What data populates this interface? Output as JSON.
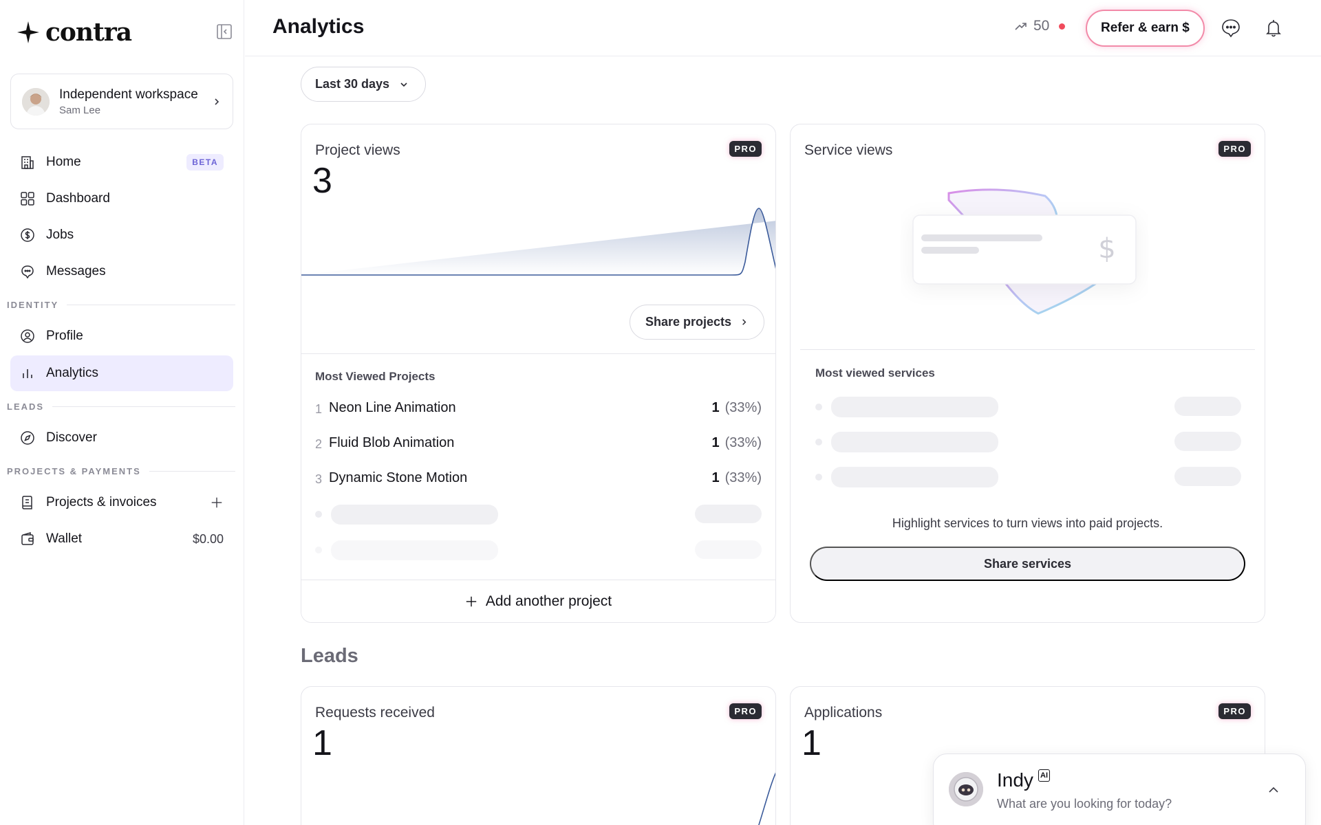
{
  "brand": {
    "name": "contra"
  },
  "workspace": {
    "name": "Independent workspace",
    "user": "Sam Lee"
  },
  "nav": {
    "home": "Home",
    "home_badge": "BETA",
    "dashboard": "Dashboard",
    "jobs": "Jobs",
    "messages": "Messages",
    "section_identity": "IDENTITY",
    "profile": "Profile",
    "analytics": "Analytics",
    "section_leads": "LEADS",
    "discover": "Discover",
    "section_projects": "PROJECTS & PAYMENTS",
    "projects_invoices": "Projects & invoices",
    "wallet": "Wallet",
    "wallet_value": "$0.00"
  },
  "header": {
    "title": "Analytics",
    "streak": "50",
    "refer": "Refer & earn $"
  },
  "filter": {
    "label": "Last 30 days"
  },
  "project_views": {
    "title": "Project views",
    "badge": "PRO",
    "value": "3",
    "share_label": "Share projects",
    "list_title": "Most Viewed Projects",
    "items": [
      {
        "rank": "1",
        "name": "Neon Line Animation",
        "count": "1",
        "pct": "(33%)"
      },
      {
        "rank": "2",
        "name": "Fluid Blob Animation",
        "count": "1",
        "pct": "(33%)"
      },
      {
        "rank": "3",
        "name": "Dynamic Stone Motion",
        "count": "1",
        "pct": "(33%)"
      }
    ],
    "add_label": "Add another project"
  },
  "service_views": {
    "title": "Service views",
    "badge": "PRO",
    "list_title": "Most viewed services",
    "highlight": "Highlight services to turn views into paid projects.",
    "share_label": "Share services"
  },
  "leads": {
    "section_title": "Leads",
    "requests": {
      "title": "Requests received",
      "badge": "PRO",
      "value": "1"
    },
    "applications": {
      "title": "Applications",
      "badge": "PRO",
      "value": "1"
    }
  },
  "indy": {
    "name": "Indy",
    "badge": "AI",
    "prompt": "What are you looking for today?"
  },
  "colors": {
    "accent": "#6c63d6",
    "active_bg": "#eeecff",
    "refer_border": "#f28aa8",
    "line": "#3a5a9a"
  }
}
